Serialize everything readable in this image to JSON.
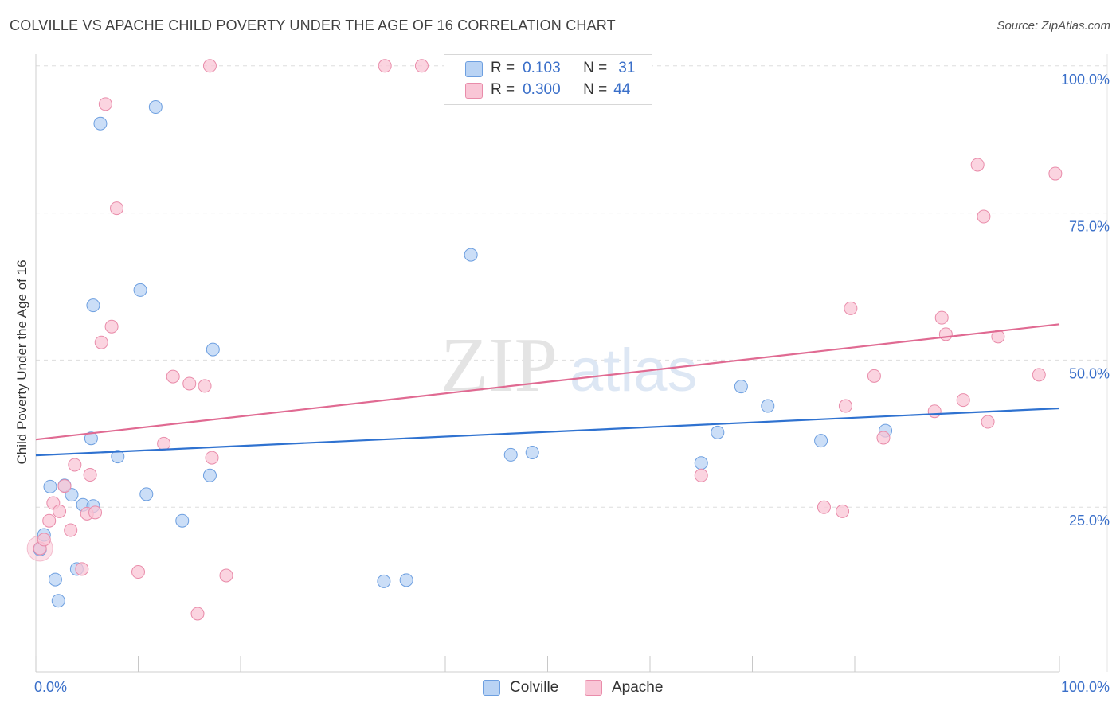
{
  "header": {
    "title": "COLVILLE VS APACHE CHILD POVERTY UNDER THE AGE OF 16 CORRELATION CHART",
    "source": "Source: ZipAtlas.com"
  },
  "watermark": {
    "zip": "ZIP",
    "atlas": "atlas"
  },
  "stats": {
    "rows": [
      {
        "r_label": "R =",
        "r_value": "0.103",
        "n_label": "N =",
        "n_value": "31"
      },
      {
        "r_label": "R =",
        "r_value": "0.300",
        "n_label": "N =",
        "n_value": "44"
      }
    ]
  },
  "legend": {
    "items": [
      "Colville",
      "Apache"
    ]
  },
  "colors": {
    "colville_fill": "#b9d3f4",
    "colville_stroke": "#6d9fe0",
    "colville_line": "#2f72d0",
    "apache_fill": "#f9c6d6",
    "apache_stroke": "#e98caa",
    "apache_line": "#e06a92",
    "tick_label": "#3a6fc9",
    "grid": "#dddddd"
  },
  "chart_data": {
    "type": "scatter",
    "title": "COLVILLE VS APACHE CHILD POVERTY UNDER THE AGE OF 16 CORRELATION CHART",
    "xlabel": "",
    "ylabel": "Child Poverty Under the Age of 16",
    "xlim": [
      0,
      100
    ],
    "ylim": [
      0,
      102
    ],
    "x_tick_labels": [
      {
        "value": 0,
        "label": "0.0%"
      },
      {
        "value": 100,
        "label": "100.0%"
      }
    ],
    "y_tick_labels": [
      {
        "value": 25,
        "label": "25.0%"
      },
      {
        "value": 50,
        "label": "50.0%"
      },
      {
        "value": 75,
        "label": "75.0%"
      },
      {
        "value": 100,
        "label": "100.0%"
      }
    ],
    "x_minor_ticks": [
      0,
      10,
      20,
      30,
      40,
      50,
      60,
      70,
      80,
      90,
      100
    ],
    "y_gridlines": [
      25,
      50,
      75,
      100
    ],
    "series": [
      {
        "name": "Colville",
        "R": 0.103,
        "N": 31,
        "trend": {
          "x": [
            0,
            100
          ],
          "y": [
            33.8,
            41.8
          ]
        },
        "points": [
          {
            "x": 0.4,
            "y": 17.8
          },
          {
            "x": 0.8,
            "y": 20.3
          },
          {
            "x": 1.4,
            "y": 28.5
          },
          {
            "x": 1.9,
            "y": 12.7
          },
          {
            "x": 2.2,
            "y": 9.1
          },
          {
            "x": 2.8,
            "y": 28.7
          },
          {
            "x": 3.5,
            "y": 27.1
          },
          {
            "x": 4.0,
            "y": 14.5
          },
          {
            "x": 4.6,
            "y": 25.4
          },
          {
            "x": 5.6,
            "y": 25.2
          },
          {
            "x": 5.4,
            "y": 36.7
          },
          {
            "x": 5.6,
            "y": 59.3
          },
          {
            "x": 6.3,
            "y": 90.2
          },
          {
            "x": 8.0,
            "y": 33.6
          },
          {
            "x": 10.2,
            "y": 61.9
          },
          {
            "x": 10.8,
            "y": 27.2
          },
          {
            "x": 11.7,
            "y": 93.0
          },
          {
            "x": 14.3,
            "y": 22.7
          },
          {
            "x": 17.0,
            "y": 30.4
          },
          {
            "x": 17.3,
            "y": 51.8
          },
          {
            "x": 34.0,
            "y": 12.4
          },
          {
            "x": 36.2,
            "y": 12.6
          },
          {
            "x": 42.5,
            "y": 67.9
          },
          {
            "x": 46.4,
            "y": 33.9
          },
          {
            "x": 48.5,
            "y": 34.3
          },
          {
            "x": 66.6,
            "y": 37.7
          },
          {
            "x": 65.0,
            "y": 32.5
          },
          {
            "x": 68.9,
            "y": 45.5
          },
          {
            "x": 71.5,
            "y": 42.2
          },
          {
            "x": 76.7,
            "y": 36.3
          },
          {
            "x": 83.0,
            "y": 38.0
          }
        ]
      },
      {
        "name": "Apache",
        "R": 0.3,
        "N": 44,
        "trend": {
          "x": [
            0,
            100
          ],
          "y": [
            36.5,
            56.1
          ]
        },
        "points": [
          {
            "x": 0.4,
            "y": 18.0
          },
          {
            "x": 0.8,
            "y": 19.5
          },
          {
            "x": 1.3,
            "y": 22.7
          },
          {
            "x": 1.7,
            "y": 25.7
          },
          {
            "x": 2.3,
            "y": 24.3
          },
          {
            "x": 2.8,
            "y": 28.6
          },
          {
            "x": 3.4,
            "y": 21.1
          },
          {
            "x": 3.8,
            "y": 32.2
          },
          {
            "x": 4.5,
            "y": 14.5
          },
          {
            "x": 5.0,
            "y": 23.9
          },
          {
            "x": 5.3,
            "y": 30.5
          },
          {
            "x": 5.8,
            "y": 24.1
          },
          {
            "x": 6.4,
            "y": 53.0
          },
          {
            "x": 6.8,
            "y": 93.5
          },
          {
            "x": 7.4,
            "y": 55.7
          },
          {
            "x": 7.9,
            "y": 75.8
          },
          {
            "x": 10.0,
            "y": 14.0
          },
          {
            "x": 12.5,
            "y": 35.8
          },
          {
            "x": 13.4,
            "y": 47.2
          },
          {
            "x": 15.0,
            "y": 46.0
          },
          {
            "x": 15.8,
            "y": 6.9
          },
          {
            "x": 16.5,
            "y": 45.6
          },
          {
            "x": 17.0,
            "y": 100.0
          },
          {
            "x": 17.2,
            "y": 33.4
          },
          {
            "x": 18.6,
            "y": 13.4
          },
          {
            "x": 34.1,
            "y": 100.0
          },
          {
            "x": 37.7,
            "y": 100.0
          },
          {
            "x": 65.0,
            "y": 30.4
          },
          {
            "x": 77.0,
            "y": 25.0
          },
          {
            "x": 78.8,
            "y": 24.3
          },
          {
            "x": 79.1,
            "y": 42.2
          },
          {
            "x": 79.6,
            "y": 58.8
          },
          {
            "x": 81.9,
            "y": 47.3
          },
          {
            "x": 82.8,
            "y": 36.8
          },
          {
            "x": 87.8,
            "y": 41.3
          },
          {
            "x": 88.5,
            "y": 57.2
          },
          {
            "x": 88.9,
            "y": 54.4
          },
          {
            "x": 90.6,
            "y": 43.2
          },
          {
            "x": 92.0,
            "y": 83.2
          },
          {
            "x": 92.6,
            "y": 74.4
          },
          {
            "x": 93.0,
            "y": 39.5
          },
          {
            "x": 94.0,
            "y": 54.0
          },
          {
            "x": 98.0,
            "y": 47.5
          },
          {
            "x": 99.6,
            "y": 81.7
          }
        ]
      }
    ]
  }
}
